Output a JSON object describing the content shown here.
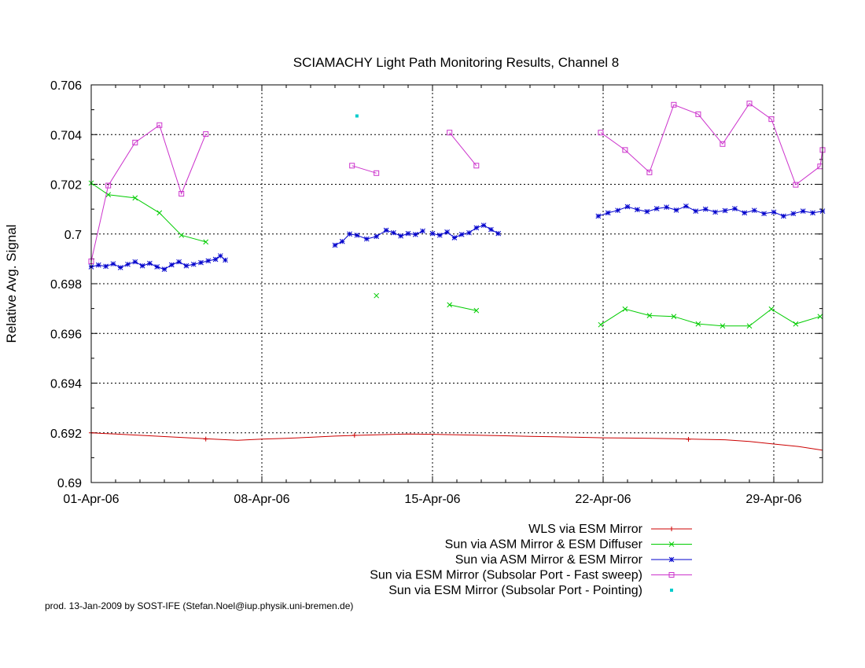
{
  "footer": "prod. 13-Jan-2009 by SOST-IFE (Stefan.Noel@iup.physik.uni-bremen.de)",
  "chart_data": {
    "type": "line",
    "title": "SCIAMACHY Light Path Monitoring Results, Channel 8",
    "xlabel": "",
    "ylabel": "Relative Avg. Signal",
    "xlim": [
      0,
      30
    ],
    "ylim": [
      0.69,
      0.706
    ],
    "x_unit": "days since 01-Apr-06",
    "yticks": [
      {
        "v": 0.69,
        "label": "0.69"
      },
      {
        "v": 0.692,
        "label": "0.692"
      },
      {
        "v": 0.694,
        "label": "0.694"
      },
      {
        "v": 0.696,
        "label": "0.696"
      },
      {
        "v": 0.698,
        "label": "0.698"
      },
      {
        "v": 0.7,
        "label": "0.7"
      },
      {
        "v": 0.702,
        "label": "0.702"
      },
      {
        "v": 0.704,
        "label": "0.704"
      },
      {
        "v": 0.706,
        "label": "0.706"
      }
    ],
    "xticks": [
      {
        "v": 0,
        "label": "01-Apr-06"
      },
      {
        "v": 7,
        "label": "08-Apr-06"
      },
      {
        "v": 14,
        "label": "15-Apr-06"
      },
      {
        "v": 21,
        "label": "22-Apr-06"
      },
      {
        "v": 28,
        "label": "29-Apr-06"
      }
    ],
    "grid": true,
    "legend_position": "bottom-right",
    "series": [
      {
        "name": "WLS via ESM Mirror",
        "color": "#cc0000",
        "marker": "plus",
        "segments": [
          [
            [
              0.0,
              0.692
            ],
            [
              1.0,
              0.69195
            ],
            [
              2.0,
              0.6919
            ],
            [
              3.0,
              0.69185
            ],
            [
              4.0,
              0.6918
            ],
            [
              5.0,
              0.69175
            ],
            [
              6.0,
              0.6917
            ],
            [
              7.0,
              0.69175
            ],
            [
              8.0,
              0.69178
            ],
            [
              9.0,
              0.69182
            ],
            [
              10.0,
              0.69187
            ],
            [
              11.0,
              0.6919
            ],
            [
              12.0,
              0.69193
            ],
            [
              13.0,
              0.69195
            ],
            [
              14.0,
              0.69194
            ],
            [
              15.0,
              0.69192
            ],
            [
              16.0,
              0.6919
            ],
            [
              17.0,
              0.69188
            ],
            [
              18.0,
              0.69186
            ],
            [
              19.0,
              0.69184
            ],
            [
              20.0,
              0.69182
            ],
            [
              21.0,
              0.6918
            ],
            [
              22.0,
              0.69179
            ],
            [
              23.0,
              0.69178
            ],
            [
              24.0,
              0.69176
            ],
            [
              25.0,
              0.69174
            ],
            [
              26.0,
              0.69172
            ],
            [
              27.0,
              0.69165
            ],
            [
              28.0,
              0.69155
            ],
            [
              29.0,
              0.69145
            ],
            [
              30.0,
              0.6913
            ]
          ]
        ],
        "markers": [
          [
            0.0,
            0.692
          ],
          [
            4.7,
            0.69175
          ],
          [
            10.8,
            0.6919
          ],
          [
            24.5,
            0.69174
          ]
        ]
      },
      {
        "name": "Sun via ASM Mirror & ESM Diffuser",
        "color": "#00cc00",
        "marker": "cross",
        "segments": [
          [
            [
              0.0,
              0.70205
            ],
            [
              0.7,
              0.70158
            ],
            [
              1.8,
              0.70145
            ],
            [
              2.8,
              0.70085
            ],
            [
              3.7,
              0.69995
            ],
            [
              4.7,
              0.69968
            ]
          ],
          [
            [
              11.7,
              0.69752
            ]
          ],
          [
            [
              14.7,
              0.69715
            ],
            [
              15.8,
              0.69692
            ]
          ],
          [
            [
              20.9,
              0.69635
            ],
            [
              21.9,
              0.69698
            ],
            [
              22.9,
              0.69672
            ],
            [
              23.9,
              0.69668
            ],
            [
              24.9,
              0.69638
            ],
            [
              25.9,
              0.6963
            ],
            [
              27.0,
              0.6963
            ],
            [
              27.9,
              0.69698
            ],
            [
              28.9,
              0.69638
            ],
            [
              29.9,
              0.69668
            ]
          ]
        ]
      },
      {
        "name": "Sun via ASM Mirror & ESM Mirror",
        "color": "#0000cc",
        "marker": "star",
        "segments": [
          [
            [
              0.0,
              0.69868
            ],
            [
              0.3,
              0.69875
            ],
            [
              0.6,
              0.6987
            ],
            [
              0.9,
              0.6988
            ],
            [
              1.2,
              0.69865
            ],
            [
              1.5,
              0.69878
            ],
            [
              1.8,
              0.69888
            ],
            [
              2.1,
              0.69872
            ],
            [
              2.4,
              0.69882
            ],
            [
              2.7,
              0.69868
            ],
            [
              3.0,
              0.69858
            ],
            [
              3.3,
              0.69876
            ],
            [
              3.6,
              0.69888
            ],
            [
              3.9,
              0.69872
            ],
            [
              4.2,
              0.69878
            ],
            [
              4.5,
              0.69885
            ],
            [
              4.8,
              0.69892
            ],
            [
              5.1,
              0.69898
            ],
            [
              5.3,
              0.69912
            ],
            [
              5.5,
              0.69895
            ]
          ],
          [
            [
              10.0,
              0.69955
            ],
            [
              10.3,
              0.6997
            ],
            [
              10.6,
              0.7
            ],
            [
              10.9,
              0.69995
            ],
            [
              11.3,
              0.6998
            ],
            [
              11.7,
              0.6999
            ],
            [
              12.1,
              0.70015
            ],
            [
              12.4,
              0.70005
            ],
            [
              12.7,
              0.69992
            ],
            [
              13.0,
              0.70002
            ],
            [
              13.3,
              0.69998
            ],
            [
              13.6,
              0.70012
            ]
          ],
          [
            [
              14.0,
              0.70002
            ],
            [
              14.3,
              0.69995
            ],
            [
              14.6,
              0.70008
            ],
            [
              14.9,
              0.69985
            ],
            [
              15.2,
              0.69998
            ],
            [
              15.5,
              0.70005
            ],
            [
              15.8,
              0.70025
            ],
            [
              16.1,
              0.70035
            ],
            [
              16.4,
              0.70018
            ],
            [
              16.7,
              0.70002
            ]
          ],
          [
            [
              20.8,
              0.70072
            ],
            [
              21.2,
              0.70085
            ],
            [
              21.6,
              0.70095
            ],
            [
              22.0,
              0.7011
            ],
            [
              22.4,
              0.70098
            ],
            [
              22.8,
              0.7009
            ],
            [
              23.2,
              0.70102
            ],
            [
              23.6,
              0.70108
            ],
            [
              24.0,
              0.70096
            ],
            [
              24.4,
              0.70112
            ],
            [
              24.8,
              0.70092
            ],
            [
              25.2,
              0.701
            ],
            [
              25.6,
              0.70088
            ],
            [
              26.0,
              0.70094
            ],
            [
              26.4,
              0.70102
            ],
            [
              26.8,
              0.70085
            ],
            [
              27.2,
              0.70095
            ],
            [
              27.6,
              0.70082
            ],
            [
              28.0,
              0.70088
            ],
            [
              28.4,
              0.70072
            ],
            [
              28.8,
              0.70082
            ],
            [
              29.2,
              0.70092
            ],
            [
              29.6,
              0.70085
            ],
            [
              30.0,
              0.70092
            ]
          ]
        ]
      },
      {
        "name": "Sun via ESM Mirror (Subsolar Port - Fast sweep)",
        "color": "#cc33cc",
        "marker": "square",
        "segments": [
          [
            [
              0.0,
              0.6989
            ],
            [
              0.7,
              0.70195
            ],
            [
              1.8,
              0.70368
            ],
            [
              2.8,
              0.70438
            ],
            [
              3.7,
              0.70162
            ],
            [
              4.7,
              0.70402
            ]
          ],
          [
            [
              10.7,
              0.70275
            ],
            [
              11.7,
              0.70245
            ]
          ],
          [
            [
              14.7,
              0.70408
            ],
            [
              15.8,
              0.70275
            ]
          ],
          [
            [
              20.9,
              0.70408
            ],
            [
              21.9,
              0.70338
            ],
            [
              22.9,
              0.70248
            ],
            [
              23.9,
              0.7052
            ],
            [
              24.9,
              0.70482
            ],
            [
              25.9,
              0.70362
            ],
            [
              27.0,
              0.70525
            ],
            [
              27.9,
              0.70462
            ],
            [
              28.9,
              0.70198
            ],
            [
              29.9,
              0.70272
            ],
            [
              30.0,
              0.70338
            ]
          ]
        ]
      },
      {
        "name": "Sun via ESM Mirror (Subsolar Port - Pointing)",
        "color": "#00cccc",
        "marker": "dot",
        "segments": [
          [
            [
              10.9,
              0.70475
            ]
          ]
        ]
      }
    ]
  }
}
